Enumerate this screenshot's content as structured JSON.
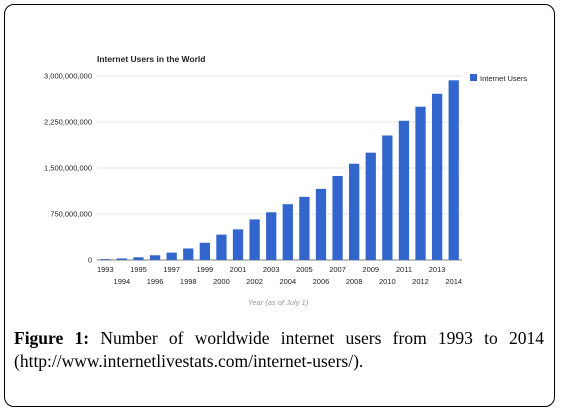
{
  "chart_data": {
    "type": "bar",
    "title": "Internet Users in the World",
    "xlabel": "Year (as of July 1)",
    "ylabel": "",
    "ylim": [
      0,
      3000000000
    ],
    "yticks": [
      "0",
      "750,000,000",
      "1,500,000,000",
      "2,250,000,000",
      "3,000,000,000"
    ],
    "ytick_values": [
      0,
      750000000,
      1500000000,
      2250000000,
      3000000000
    ],
    "grid": true,
    "legend_position": "right",
    "categories": [
      "1993",
      "1994",
      "1995",
      "1996",
      "1997",
      "1998",
      "1999",
      "2000",
      "2001",
      "2002",
      "2003",
      "2004",
      "2005",
      "2006",
      "2007",
      "2008",
      "2009",
      "2010",
      "2011",
      "2012",
      "2013",
      "2014"
    ],
    "series": [
      {
        "name": "Internet Users",
        "color": "#3366cc",
        "values": [
          14000000,
          25000000,
          44000000,
          77000000,
          121000000,
          188000000,
          281000000,
          414000000,
          500000000,
          662000000,
          778000000,
          910000000,
          1030000000,
          1160000000,
          1370000000,
          1570000000,
          1750000000,
          2030000000,
          2270000000,
          2500000000,
          2710000000,
          2930000000
        ]
      }
    ]
  },
  "caption": {
    "label": "Figure 1:",
    "text": " Number of worldwide internet users from 1993 to 2014 (http://www.internetlivestats.com/internet-users/)."
  }
}
